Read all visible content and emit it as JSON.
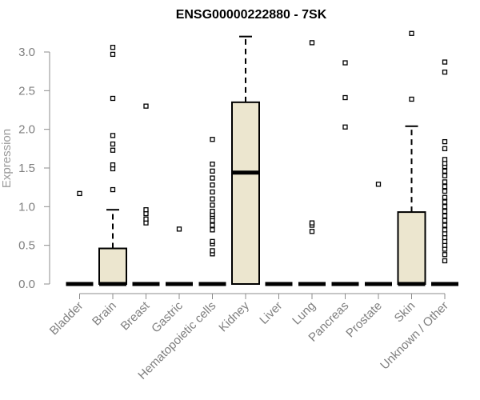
{
  "chart_data": {
    "type": "boxplot",
    "title": "ENSG00000222880 - 7SK",
    "xlabel": "",
    "ylabel": "Expression",
    "ylim": [
      0,
      3.3
    ],
    "yticks": [
      "0.0",
      "0.5",
      "1.0",
      "1.5",
      "2.0",
      "2.5",
      "3.0"
    ],
    "grid": false,
    "legend": "none",
    "colors": {
      "box_fill": "#ece6cf",
      "box_stroke": "#000000",
      "axis": "#8c8c8c",
      "tick_text": "#7f7f7f"
    },
    "categories": [
      "Bladder",
      "Brain",
      "Breast",
      "Gastric",
      "Hematopoietic cells",
      "Kidney",
      "Liver",
      "Lung",
      "Pancreas",
      "Prostate",
      "Skin",
      "Unknown / Other"
    ],
    "boxes": [
      {
        "category": "Bladder",
        "q1": 0,
        "median": 0,
        "q3": 0,
        "whisker_low": 0,
        "whisker_high": 0,
        "outliers": [
          1.17
        ]
      },
      {
        "category": "Brain",
        "q1": 0,
        "median": 0,
        "q3": 0.46,
        "whisker_low": 0,
        "whisker_high": 0.96,
        "outliers": [
          1.22,
          1.49,
          1.54,
          1.73,
          1.81,
          1.92,
          2.4,
          2.97,
          3.06
        ]
      },
      {
        "category": "Breast",
        "q1": 0,
        "median": 0,
        "q3": 0,
        "whisker_low": 0,
        "whisker_high": 0,
        "outliers": [
          0.79,
          0.84,
          0.91,
          0.96,
          2.3
        ]
      },
      {
        "category": "Gastric",
        "q1": 0,
        "median": 0,
        "q3": 0,
        "whisker_low": 0,
        "whisker_high": 0,
        "outliers": [
          0.71
        ]
      },
      {
        "category": "Hematopoietic cells",
        "q1": 0,
        "median": 0,
        "q3": 0,
        "whisker_low": 0,
        "whisker_high": 0,
        "outliers": [
          0.39,
          0.43,
          0.52,
          0.55,
          0.7,
          0.76,
          0.82,
          0.87,
          0.9,
          0.94,
          1.02,
          1.1,
          1.19,
          1.28,
          1.37,
          1.46,
          1.55,
          1.87
        ]
      },
      {
        "category": "Kidney",
        "q1": 0,
        "median": 1.44,
        "q3": 2.35,
        "whisker_low": 0,
        "whisker_high": 3.2,
        "outliers": []
      },
      {
        "category": "Liver",
        "q1": 0,
        "median": 0,
        "q3": 0,
        "whisker_low": 0,
        "whisker_high": 0,
        "outliers": []
      },
      {
        "category": "Lung",
        "q1": 0,
        "median": 0,
        "q3": 0,
        "whisker_low": 0,
        "whisker_high": 0,
        "outliers": [
          0.68,
          0.76,
          0.79,
          3.12
        ]
      },
      {
        "category": "Pancreas",
        "q1": 0,
        "median": 0,
        "q3": 0,
        "whisker_low": 0,
        "whisker_high": 0,
        "outliers": [
          2.03,
          2.41,
          2.86
        ]
      },
      {
        "category": "Prostate",
        "q1": 0,
        "median": 0,
        "q3": 0,
        "whisker_low": 0,
        "whisker_high": 0,
        "outliers": [
          1.29
        ]
      },
      {
        "category": "Skin",
        "q1": 0,
        "median": 0,
        "q3": 0.93,
        "whisker_low": 0,
        "whisker_high": 2.04,
        "outliers": [
          2.39,
          3.24
        ]
      },
      {
        "category": "Unknown / Other",
        "q1": 0,
        "median": 0,
        "q3": 0,
        "whisker_low": 0,
        "whisker_high": 0,
        "outliers": [
          0.3,
          0.38,
          0.45,
          0.5,
          0.55,
          0.6,
          0.65,
          0.7,
          0.76,
          0.82,
          0.88,
          0.94,
          1.0,
          1.06,
          1.12,
          1.2,
          1.26,
          1.32,
          1.4,
          1.46,
          1.52,
          1.56,
          1.61,
          1.75,
          1.84,
          2.74,
          2.87
        ]
      }
    ]
  }
}
